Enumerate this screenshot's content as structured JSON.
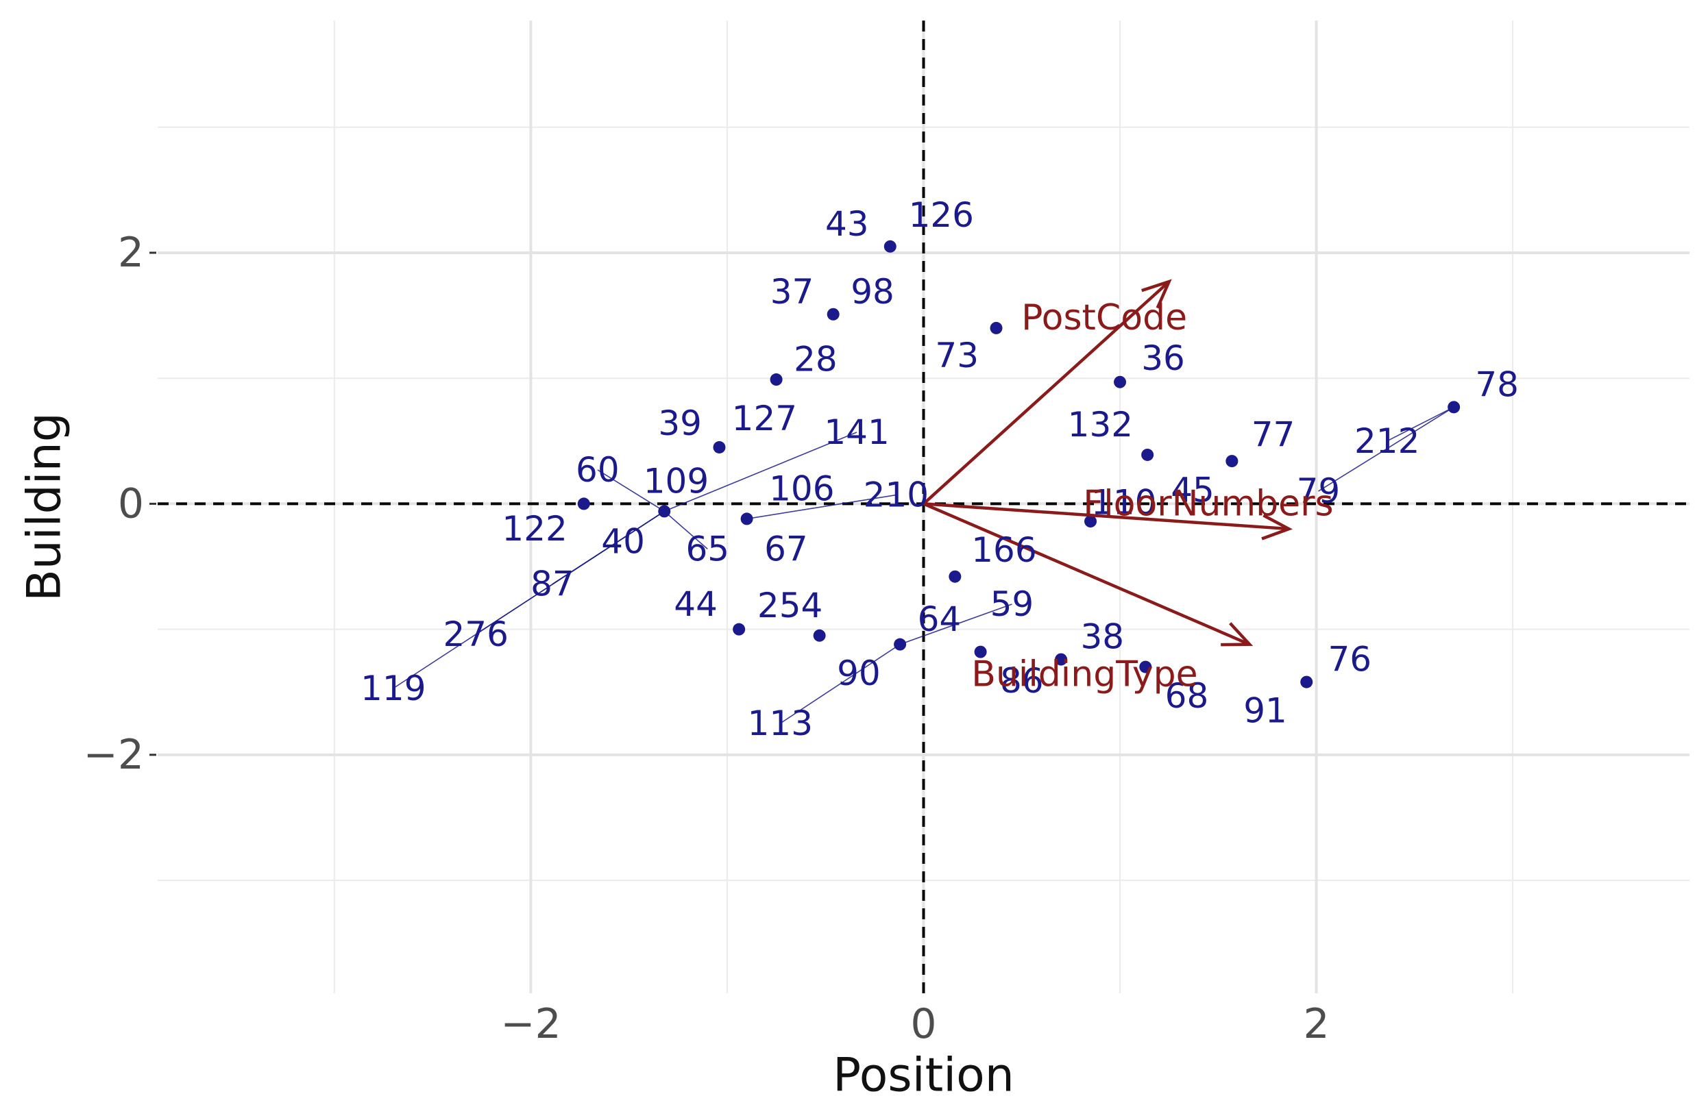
{
  "chart_data": {
    "type": "scatter",
    "subtype": "biplot",
    "xlabel": "Position",
    "ylabel": "Building",
    "xlim": [
      -3.9,
      3.9
    ],
    "ylim": [
      -3.9,
      3.85
    ],
    "x_ticks": [
      -2,
      0,
      2
    ],
    "x_tick_labels": [
      "−2",
      "0",
      "2"
    ],
    "y_ticks": [
      -2,
      0,
      2
    ],
    "y_tick_labels": [
      "−2",
      "0",
      "2"
    ],
    "minor_grid": [
      -3,
      -1,
      1,
      3
    ],
    "grid": true,
    "reference_lines": {
      "x": 0,
      "y": 0,
      "style": "dashed"
    },
    "point_color": "#1a1a8c",
    "arrow_color": "#8b1a1a",
    "points": [
      {
        "label": "43",
        "x": -0.17,
        "y": 2.05,
        "lx": -0.39,
        "ly": 2.23
      },
      {
        "label": "126",
        "x": -0.17,
        "y": 2.05,
        "lx": 0.09,
        "ly": 2.3
      },
      {
        "label": "37",
        "x": -0.46,
        "y": 1.51,
        "lx": -0.67,
        "ly": 1.69
      },
      {
        "label": "98",
        "x": -0.46,
        "y": 1.51,
        "lx": -0.26,
        "ly": 1.69
      },
      {
        "label": "73",
        "x": 0.37,
        "y": 1.4,
        "lx": 0.17,
        "ly": 1.18
      },
      {
        "label": "28",
        "x": -0.75,
        "y": 0.99,
        "lx": -0.55,
        "ly": 1.15
      },
      {
        "label": "36",
        "x": 1.0,
        "y": 0.97,
        "lx": 1.22,
        "ly": 1.16
      },
      {
        "label": "78",
        "x": 2.7,
        "y": 0.77,
        "lx": 2.92,
        "ly": 0.95
      },
      {
        "label": "39",
        "x": -1.04,
        "y": 0.45,
        "lx": -1.24,
        "ly": 0.64
      },
      {
        "label": "127",
        "x": -1.04,
        "y": 0.45,
        "lx": -0.81,
        "ly": 0.68
      },
      {
        "label": "141",
        "x": -1.32,
        "y": -0.06,
        "lx": -0.34,
        "ly": 0.57,
        "leader": true
      },
      {
        "label": "132",
        "x": 1.14,
        "y": 0.39,
        "lx": 0.9,
        "ly": 0.63
      },
      {
        "label": "77",
        "x": 1.57,
        "y": 0.34,
        "lx": 1.78,
        "ly": 0.55
      },
      {
        "label": "212",
        "x": 2.7,
        "y": 0.77,
        "lx": 2.36,
        "ly": 0.5,
        "leader": true
      },
      {
        "label": "60",
        "x": -1.32,
        "y": -0.06,
        "lx": -1.66,
        "ly": 0.27,
        "leader": true
      },
      {
        "label": "109",
        "x": -1.32,
        "y": -0.06,
        "lx": -1.26,
        "ly": 0.18
      },
      {
        "label": "106",
        "x": -0.9,
        "y": -0.12,
        "lx": -0.62,
        "ly": 0.12
      },
      {
        "label": "210",
        "x": -0.9,
        "y": -0.12,
        "lx": -0.14,
        "ly": 0.07,
        "leader": true
      },
      {
        "label": "45",
        "x": 1.57,
        "y": 0.34,
        "lx": 1.37,
        "ly": 0.11
      },
      {
        "label": "79",
        "x": 2.7,
        "y": 0.77,
        "lx": 2.01,
        "ly": 0.1,
        "leader": true
      },
      {
        "label": "110",
        "x": 0.85,
        "y": -0.14,
        "lx": 1.02,
        "ly": 0.01
      },
      {
        "label": "122",
        "x": -1.73,
        "y": 0.0,
        "lx": -1.98,
        "ly": -0.2
      },
      {
        "label": "40",
        "x": -1.32,
        "y": -0.06,
        "lx": -1.53,
        "ly": -0.3
      },
      {
        "label": "65",
        "x": -1.32,
        "y": -0.06,
        "lx": -1.1,
        "ly": -0.36,
        "leader": true
      },
      {
        "label": "67",
        "x": -0.9,
        "y": -0.12,
        "lx": -0.7,
        "ly": -0.36
      },
      {
        "label": "166",
        "x": 0.16,
        "y": -0.58,
        "lx": 0.41,
        "ly": -0.37
      },
      {
        "label": "87",
        "x": -1.32,
        "y": -0.06,
        "lx": -1.89,
        "ly": -0.64,
        "leader": true
      },
      {
        "label": "44",
        "x": -0.94,
        "y": -1.0,
        "lx": -1.16,
        "ly": -0.8
      },
      {
        "label": "254",
        "x": -0.53,
        "y": -1.05,
        "lx": -0.68,
        "ly": -0.81
      },
      {
        "label": "59",
        "x": -0.12,
        "y": -1.12,
        "lx": 0.45,
        "ly": -0.8,
        "leader": true
      },
      {
        "label": "64",
        "x": -0.12,
        "y": -1.12,
        "lx": 0.08,
        "ly": -0.92
      },
      {
        "label": "276",
        "x": -1.32,
        "y": -0.06,
        "lx": -2.28,
        "ly": -1.04,
        "leader": true
      },
      {
        "label": "38",
        "x": 0.7,
        "y": -1.24,
        "lx": 0.91,
        "ly": -1.06
      },
      {
        "label": "76",
        "x": 1.95,
        "y": -1.42,
        "lx": 2.17,
        "ly": -1.24
      },
      {
        "label": "90",
        "x": -0.12,
        "y": -1.12,
        "lx": -0.33,
        "ly": -1.35
      },
      {
        "label": "86",
        "x": 0.29,
        "y": -1.18,
        "lx": 0.5,
        "ly": -1.41
      },
      {
        "label": "68",
        "x": 1.13,
        "y": -1.3,
        "lx": 1.34,
        "ly": -1.53
      },
      {
        "label": "91",
        "x": 1.95,
        "y": -1.42,
        "lx": 1.74,
        "ly": -1.65
      },
      {
        "label": "119",
        "x": -1.32,
        "y": -0.06,
        "lx": -2.7,
        "ly": -1.47,
        "leader": true
      },
      {
        "label": "113",
        "x": -0.12,
        "y": -1.12,
        "lx": -0.73,
        "ly": -1.75,
        "leader": true
      }
    ],
    "vectors": [
      {
        "name": "PostCode",
        "x": 1.25,
        "y": 1.77,
        "lx": 0.92,
        "ly": 1.48
      },
      {
        "name": "FloorNumbers",
        "x": 1.86,
        "y": -0.2,
        "lx": 1.45,
        "ly": 0.0
      },
      {
        "name": "BuildingType",
        "x": 1.66,
        "y": -1.12,
        "lx": 0.82,
        "ly": -1.36
      }
    ]
  }
}
